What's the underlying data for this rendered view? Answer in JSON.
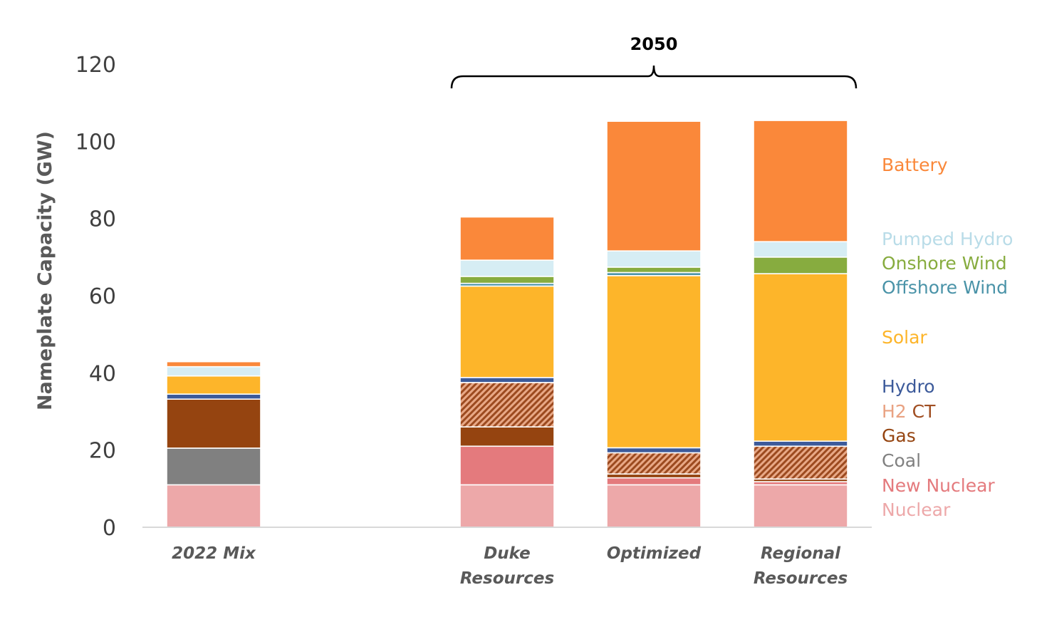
{
  "chart_data": {
    "type": "bar",
    "stacked": true,
    "ylabel": "Nameplate Capacity (GW)",
    "ylim": [
      0,
      120
    ],
    "yticks": [
      0,
      20,
      40,
      60,
      80,
      100,
      120
    ],
    "grid": false,
    "legend_position": "right",
    "categories": [
      {
        "label": [
          "2022 Mix"
        ]
      },
      {
        "label": [
          "Duke",
          "Resources"
        ]
      },
      {
        "label": [
          "Optimized"
        ]
      },
      {
        "label": [
          "Regional",
          "Resources"
        ]
      }
    ],
    "group_label": {
      "text": "2050",
      "spans": [
        1,
        3
      ]
    },
    "series": [
      {
        "name": "Nuclear",
        "color": "#eda8a9",
        "values": [
          11.0,
          11.0,
          11.0,
          11.0
        ]
      },
      {
        "name": "New Nuclear",
        "color": "#e47a7d",
        "values": [
          0,
          10.0,
          1.8,
          0.8
        ]
      },
      {
        "name": "Coal",
        "color": "#808080",
        "values": [
          9.5,
          0,
          0,
          0
        ]
      },
      {
        "name": "Gas",
        "color": "#954410",
        "values": [
          12.7,
          5.0,
          1.0,
          0.7
        ]
      },
      {
        "name": "H2 CT",
        "color": "#a04e22",
        "hatch": true,
        "values": [
          0,
          11.5,
          5.5,
          8.5
        ]
      },
      {
        "name": "Hydro",
        "color": "#3c5a9a",
        "values": [
          1.3,
          1.3,
          1.3,
          1.3
        ]
      },
      {
        "name": "Solar",
        "color": "#fdb52a",
        "values": [
          4.7,
          23.7,
          44.6,
          43.4
        ]
      },
      {
        "name": "Offshore Wind",
        "color": "#4a93a8",
        "values": [
          0,
          0.7,
          0.8,
          0
        ]
      },
      {
        "name": "Onshore Wind",
        "color": "#87ac3f",
        "values": [
          0,
          1.8,
          1.4,
          4.3
        ]
      },
      {
        "name": "Pumped Hydro",
        "color": "#d6edf4",
        "values": [
          2.4,
          4.2,
          4.2,
          4.0
        ]
      },
      {
        "name": "Battery",
        "color": "#fa883a",
        "values": [
          1.3,
          11.2,
          33.6,
          31.4
        ]
      }
    ]
  }
}
